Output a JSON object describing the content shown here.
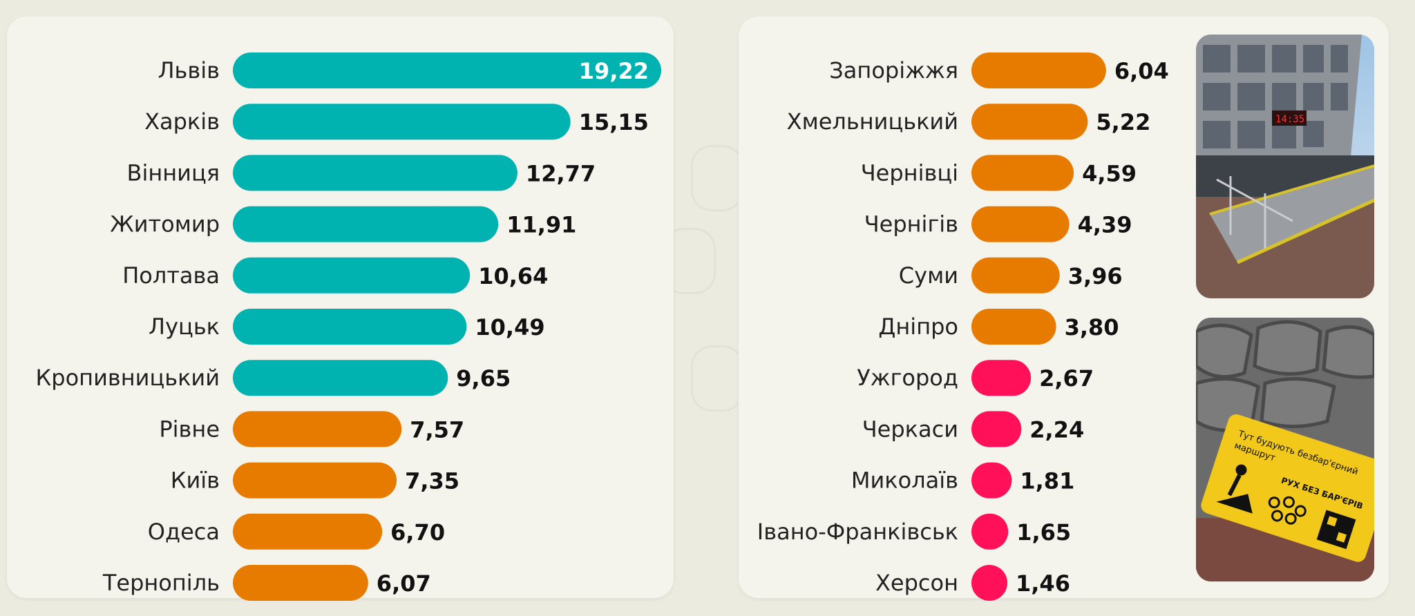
{
  "colors": {
    "teal": "#00b2b0",
    "orange": "#e67b00",
    "pink": "#ff1058"
  },
  "chart_data": [
    {
      "type": "bar",
      "orientation": "horizontal",
      "categories": [
        "Львів",
        "Харків",
        "Вінниця",
        "Житомир",
        "Полтава",
        "Луцьк",
        "Кропивницький",
        "Рівне",
        "Київ",
        "Одеса",
        "Тернопіль"
      ],
      "values": [
        19.22,
        15.15,
        12.77,
        11.91,
        10.64,
        10.49,
        9.65,
        7.57,
        7.35,
        6.7,
        6.07
      ],
      "labels": [
        "19,22",
        "15,15",
        "12,77",
        "11,91",
        "10,64",
        "10,49",
        "9,65",
        "7,57",
        "7,35",
        "6,70",
        "6,07"
      ],
      "bar_colors": [
        "teal",
        "teal",
        "teal",
        "teal",
        "teal",
        "teal",
        "teal",
        "orange",
        "orange",
        "orange",
        "orange"
      ],
      "xlim": [
        0,
        19.22
      ],
      "grid": false
    },
    {
      "type": "bar",
      "orientation": "horizontal",
      "categories": [
        "Запоріжжя",
        "Хмельницький",
        "Чернівці",
        "Чернігів",
        "Суми",
        "Дніпро",
        "Ужгород",
        "Черкаси",
        "Миколаїв",
        "Івано-Франківськ",
        "Херсон"
      ],
      "values": [
        6.04,
        5.22,
        4.59,
        4.39,
        3.96,
        3.8,
        2.67,
        2.24,
        1.81,
        1.65,
        1.46
      ],
      "labels": [
        "6,04",
        "5,22",
        "4,59",
        "4,39",
        "3,96",
        "3,80",
        "2,67",
        "2,24",
        "1,81",
        "1,65",
        "1,46"
      ],
      "bar_colors": [
        "orange",
        "orange",
        "orange",
        "orange",
        "orange",
        "orange",
        "pink",
        "pink",
        "pink",
        "pink",
        "pink"
      ],
      "xlim": [
        0,
        19.22
      ],
      "grid": false
    }
  ],
  "photos": {
    "building": {
      "icon": "building-ramp-photo",
      "sign_text": "14:35"
    },
    "pavement": {
      "icon": "barrier-free-sign-photo",
      "sign_line1": "Тут будують безбар'єрний",
      "sign_line2": "маршрут",
      "sign_line3": "РУХ БЕЗ БАР'ЄРІВ"
    }
  }
}
